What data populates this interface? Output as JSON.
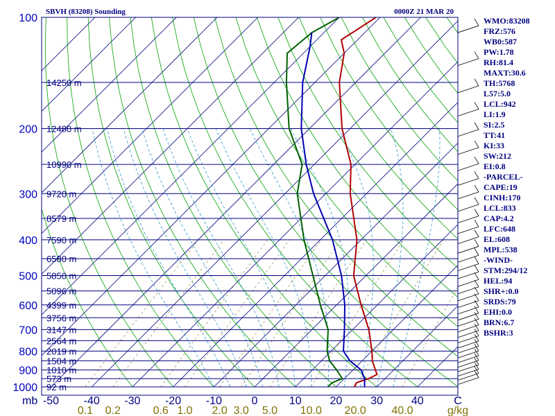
{
  "header": {
    "station": "SBVH (83208) Sounding",
    "valid": "0000Z 21 MAR 20"
  },
  "chart_data": {
    "type": "skew-t",
    "pressure_ticks": [
      "100",
      "200",
      "300",
      "400",
      "500",
      "600",
      "700",
      "800",
      "900",
      "1000"
    ],
    "pressure_levels": [
      100,
      200,
      300,
      400,
      500,
      600,
      700,
      800,
      900,
      1000
    ],
    "height_labels": [
      {
        "p": 150,
        "label": "14250 m"
      },
      {
        "p": 200,
        "label": "12480 m"
      },
      {
        "p": 250,
        "label": "10990 m"
      },
      {
        "p": 300,
        "label": "9720 m"
      },
      {
        "p": 350,
        "label": "8579 m"
      },
      {
        "p": 400,
        "label": "7590 m"
      },
      {
        "p": 450,
        "label": "6580 m"
      },
      {
        "p": 500,
        "label": "5850 m"
      },
      {
        "p": 550,
        "label": "5096 m"
      },
      {
        "p": 600,
        "label": "4399 m"
      },
      {
        "p": 650,
        "label": "3756 m"
      },
      {
        "p": 700,
        "label": "3147 m"
      },
      {
        "p": 750,
        "label": "2564 m"
      },
      {
        "p": 800,
        "label": "2019 m"
      },
      {
        "p": 850,
        "label": "1504 m"
      },
      {
        "p": 900,
        "label": "1010 m"
      },
      {
        "p": 950,
        "label": "573 m"
      },
      {
        "p": 1000,
        "label": "92 m"
      }
    ],
    "temp_axis_label": "mb",
    "temp_ticks": [
      "-50",
      "-40",
      "-30",
      "-20",
      "-10",
      "0",
      "10",
      "20",
      "30",
      "40",
      "C"
    ],
    "temp_values": [
      -50,
      -40,
      -30,
      -20,
      -10,
      0,
      10,
      20,
      30,
      40
    ],
    "mixing_ratio_labels": [
      "0.1",
      "0.2",
      "0.6",
      "1.0",
      "2.0",
      "3.0",
      "5.0",
      "10.0",
      "20.0",
      "40.0",
      "g/kg"
    ],
    "mixing_ratio_values": [
      0.1,
      0.2,
      0.6,
      1.0,
      2.0,
      3.0,
      5.0,
      10.0,
      20.0,
      40.0
    ],
    "series": [
      {
        "key": "temperature",
        "color": "#b00000",
        "points": [
          [
            1000,
            24.5
          ],
          [
            975,
            24
          ],
          [
            950,
            26
          ],
          [
            925,
            27
          ],
          [
            900,
            25.5
          ],
          [
            850,
            22.5
          ],
          [
            800,
            20
          ],
          [
            700,
            14
          ],
          [
            600,
            6
          ],
          [
            500,
            -3
          ],
          [
            400,
            -11
          ],
          [
            300,
            -24
          ],
          [
            250,
            -31
          ],
          [
            200,
            -42
          ],
          [
            150,
            -54
          ],
          [
            125,
            -60
          ],
          [
            115,
            -64
          ],
          [
            100,
            -61
          ]
        ]
      },
      {
        "key": "dewpoint",
        "color": "#006000",
        "points": [
          [
            1000,
            18
          ],
          [
            975,
            18
          ],
          [
            950,
            19.5
          ],
          [
            900,
            16
          ],
          [
            850,
            12
          ],
          [
            800,
            9
          ],
          [
            700,
            4
          ],
          [
            600,
            -4
          ],
          [
            500,
            -13
          ],
          [
            400,
            -24
          ],
          [
            300,
            -37
          ],
          [
            250,
            -43
          ],
          [
            200,
            -55
          ],
          [
            150,
            -67
          ],
          [
            125,
            -74
          ],
          [
            110,
            -73
          ],
          [
            100,
            -70
          ]
        ]
      },
      {
        "key": "parcel",
        "color": "#0000b0",
        "points": [
          [
            1000,
            27
          ],
          [
            950,
            25
          ],
          [
            900,
            22
          ],
          [
            850,
            17
          ],
          [
            800,
            13
          ],
          [
            700,
            8
          ],
          [
            600,
            2
          ],
          [
            500,
            -6
          ],
          [
            400,
            -17
          ],
          [
            300,
            -33
          ],
          [
            250,
            -42
          ],
          [
            200,
            -52
          ],
          [
            150,
            -63
          ],
          [
            120,
            -70
          ],
          [
            110,
            -73
          ]
        ]
      }
    ]
  },
  "indices": [
    "WMO:83208",
    "FRZ:576",
    "WB0:587",
    "PW:1.78",
    "RH:81.4",
    "MAXT:30.6",
    "TH:5768",
    "L57:5.0",
    "LCL:942",
    "LI:1.9",
    "SI:2.5",
    "TT:41",
    "KI:33",
    "SW:212",
    "EI:0.8",
    "-PARCEL-",
    "CAPE:19",
    "CINH:170",
    "LCL:833",
    "CAP:4.2",
    "LFC:648",
    "EL:608",
    "MPL:538",
    "-WIND-",
    "STM:294/12",
    "HEL:94",
    "SHR+:0.0",
    "SRDS:79",
    "EHI:0.0",
    "BRN:6.7",
    "BSHR:3"
  ],
  "colors": {
    "isobar": "#000080",
    "isotherm": "#000080",
    "dry_adiabat": "#00a000",
    "moist_adiabat": "#3399cc",
    "mixing_ratio": "#a09050",
    "frame": "#000080"
  }
}
